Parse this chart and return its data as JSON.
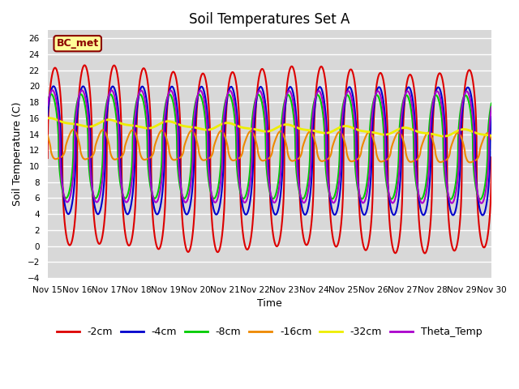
{
  "title": "Soil Temperatures Set A",
  "xlabel": "Time",
  "ylabel": "Soil Temperature (C)",
  "xlim": [
    0,
    15
  ],
  "ylim": [
    -4,
    27
  ],
  "yticks": [
    -4,
    -2,
    0,
    2,
    4,
    6,
    8,
    10,
    12,
    14,
    16,
    18,
    20,
    22,
    24,
    26
  ],
  "xtick_labels": [
    "Nov 15",
    "Nov 16",
    "Nov 17",
    "Nov 18",
    "Nov 19",
    "Nov 20",
    "Nov 21",
    "Nov 22",
    "Nov 23",
    "Nov 24",
    "Nov 25",
    "Nov 26",
    "Nov 27",
    "Nov 28",
    "Nov 29",
    "Nov 30"
  ],
  "bg_color": "#d8d8d8",
  "grid_color": "#ffffff",
  "annotation_text": "BC_met",
  "annotation_color": "#8B0000",
  "annotation_bg": "#ffff99",
  "series_order": [
    "-2cm",
    "-4cm",
    "-8cm",
    "-16cm",
    "-32cm",
    "Theta_Temp"
  ],
  "series": {
    "-2cm": {
      "color": "#dd0000",
      "lw": 1.5,
      "mean": 11.0,
      "amp": 11.2,
      "phase": 0.0,
      "amp_decay": 0.0,
      "mean_trend": -0.02
    },
    "-4cm": {
      "color": "#0000cc",
      "lw": 1.5,
      "mean": 12.0,
      "amp": 8.0,
      "phase": 0.3,
      "amp_decay": 0.0,
      "mean_trend": -0.01
    },
    "-8cm": {
      "color": "#00cc00",
      "lw": 1.5,
      "mean": 12.5,
      "amp": 6.5,
      "phase": 0.8,
      "amp_decay": 0.0,
      "mean_trend": -0.01
    },
    "-16cm": {
      "color": "#ee8800",
      "lw": 1.5,
      "mean": 12.5,
      "amp": 1.8,
      "phase": 2.5,
      "amp_decay": 0.0,
      "mean_trend": -0.03
    },
    "-32cm": {
      "color": "#eeee00",
      "lw": 2.0,
      "mean": 15.5,
      "amp": 0.4,
      "phase": 0.0,
      "amp_decay": 0.0,
      "mean_trend": -0.1
    },
    "Theta_Temp": {
      "color": "#aa00cc",
      "lw": 1.5,
      "mean": 12.5,
      "amp": 7.0,
      "phase": 0.55,
      "amp_decay": 0.0,
      "mean_trend": -0.01
    }
  },
  "legend_ncol": 6,
  "title_fontsize": 12,
  "label_fontsize": 9,
  "tick_fontsize": 7.5
}
